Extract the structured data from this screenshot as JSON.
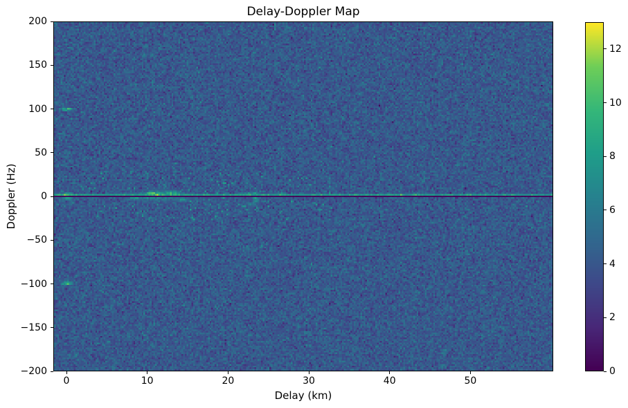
{
  "chart_data": {
    "type": "heatmap",
    "title": "Delay-Doppler Map",
    "xlabel": "Delay (km)",
    "ylabel": "Doppler (Hz)",
    "x_range": [
      -1.63,
      60.25
    ],
    "y_range": [
      -200,
      200
    ],
    "grid_on": false,
    "x_ticks": [
      {
        "value": 0,
        "label": "0"
      },
      {
        "value": 10,
        "label": "10"
      },
      {
        "value": 20,
        "label": "20"
      },
      {
        "value": 30,
        "label": "30"
      },
      {
        "value": 40,
        "label": "40"
      },
      {
        "value": 50,
        "label": "50"
      }
    ],
    "y_ticks": [
      {
        "value": 200,
        "label": "200"
      },
      {
        "value": 150,
        "label": "150"
      },
      {
        "value": 100,
        "label": "100"
      },
      {
        "value": 50,
        "label": "50"
      },
      {
        "value": 0,
        "label": "0"
      },
      {
        "value": -50,
        "label": "−50"
      },
      {
        "value": -100,
        "label": "−100"
      },
      {
        "value": -150,
        "label": "−150"
      },
      {
        "value": -200,
        "label": "−200"
      }
    ],
    "colorbar": {
      "min": 0,
      "max": 13,
      "ticks": [
        {
          "value": 0,
          "label": "0"
        },
        {
          "value": 2,
          "label": "2"
        },
        {
          "value": 4,
          "label": "4"
        },
        {
          "value": 6,
          "label": "6"
        },
        {
          "value": 8,
          "label": "8"
        },
        {
          "value": 10,
          "label": "10"
        },
        {
          "value": 12,
          "label": "12"
        }
      ],
      "colormap": "viridis",
      "stops": [
        "#440154",
        "#482878",
        "#3e4989",
        "#31688e",
        "#26828e",
        "#1f9e89",
        "#35b779",
        "#6ece58",
        "#fde725"
      ]
    },
    "grid": {
      "cols": 301,
      "rows": 211,
      "seed": 7
    },
    "background_noise": {
      "mean": 4.1,
      "std": 0.85
    },
    "zero_doppler_notch": {
      "doppler_hz": 0,
      "value": 0.35
    },
    "clutter_ridge": {
      "doppler_hz": 1.9,
      "base_value": 7.3,
      "delay_slope": -0.012,
      "speckle_std": 1.3
    },
    "speckles": {
      "count": 130,
      "delay_range": [
        -1.5,
        33
      ],
      "doppler_range": [
        -27,
        27
      ],
      "value_min": 6.2,
      "value_max": 8.4
    },
    "features": [
      {
        "delay_km": 0,
        "doppler_hz": 1,
        "peak_value": 13.0,
        "sigma_delay_km": 0.9,
        "sigma_doppler_hz": 2.5
      },
      {
        "delay_km": 0,
        "doppler_hz": -2,
        "peak_value": 9.5,
        "sigma_delay_km": 0.6,
        "sigma_doppler_hz": 2.5
      },
      {
        "delay_km": 0,
        "doppler_hz": 100,
        "peak_value": 11.0,
        "sigma_delay_km": 0.8,
        "sigma_doppler_hz": 1.8
      },
      {
        "delay_km": 0,
        "doppler_hz": -100,
        "peak_value": 11.0,
        "sigma_delay_km": 0.8,
        "sigma_doppler_hz": 1.8
      },
      {
        "delay_km": 0,
        "doppler_hz": 50,
        "peak_value": 8.3,
        "sigma_delay_km": 0.6,
        "sigma_doppler_hz": 1.5
      },
      {
        "delay_km": 0,
        "doppler_hz": -50,
        "peak_value": 7.8,
        "sigma_delay_km": 0.6,
        "sigma_doppler_hz": 1.5
      },
      {
        "delay_km": 11,
        "doppler_hz": 2,
        "peak_value": 12.5,
        "sigma_delay_km": 1.8,
        "sigma_doppler_hz": 3.5
      },
      {
        "delay_km": 11.5,
        "doppler_hz": 1,
        "peak_value": 8.2,
        "sigma_delay_km": 3.8,
        "sigma_doppler_hz": 6.5
      },
      {
        "delay_km": 13,
        "doppler_hz": 4,
        "peak_value": 10.5,
        "sigma_delay_km": 1.0,
        "sigma_doppler_hz": 3.0
      },
      {
        "delay_km": 8.5,
        "doppler_hz": -2,
        "peak_value": 9.0,
        "sigma_delay_km": 1.0,
        "sigma_doppler_hz": 3.0
      },
      {
        "delay_km": 14.5,
        "doppler_hz": -4,
        "peak_value": 8.2,
        "sigma_delay_km": 0.8,
        "sigma_doppler_hz": 3.0
      },
      {
        "delay_km": 7.5,
        "doppler_hz": 0,
        "peak_value": 8.8,
        "sigma_delay_km": 0.5,
        "sigma_doppler_hz": 2.0
      },
      {
        "delay_km": 23.4,
        "doppler_hz": 0,
        "peak_value": 9.8,
        "sigma_delay_km": 0.5,
        "sigma_doppler_hz": 7.0
      },
      {
        "delay_km": 22.3,
        "doppler_hz": 2,
        "peak_value": 9.3,
        "sigma_delay_km": 1.2,
        "sigma_doppler_hz": 2.5
      },
      {
        "delay_km": 22.8,
        "doppler_hz": -9,
        "peak_value": 8.0,
        "sigma_delay_km": 0.7,
        "sigma_doppler_hz": 3.0
      },
      {
        "delay_km": 30.5,
        "doppler_hz": 2,
        "peak_value": 8.6,
        "sigma_delay_km": 0.5,
        "sigma_doppler_hz": 1.5
      },
      {
        "delay_km": 33.5,
        "doppler_hz": 2,
        "peak_value": 8.4,
        "sigma_delay_km": 0.4,
        "sigma_doppler_hz": 1.5
      },
      {
        "delay_km": 37,
        "doppler_hz": 2,
        "peak_value": 9.2,
        "sigma_delay_km": 0.7,
        "sigma_doppler_hz": 1.5
      },
      {
        "delay_km": 40.5,
        "doppler_hz": 2,
        "peak_value": 8.8,
        "sigma_delay_km": 0.5,
        "sigma_doppler_hz": 1.5
      },
      {
        "delay_km": 44,
        "doppler_hz": 2,
        "peak_value": 8.6,
        "sigma_delay_km": 0.4,
        "sigma_doppler_hz": 1.5
      },
      {
        "delay_km": 48.5,
        "doppler_hz": 2,
        "peak_value": 8.3,
        "sigma_delay_km": 0.4,
        "sigma_doppler_hz": 1.5
      }
    ]
  },
  "colors": {
    "frame": "#000000",
    "text": "#000000",
    "page_background": "#ffffff"
  }
}
